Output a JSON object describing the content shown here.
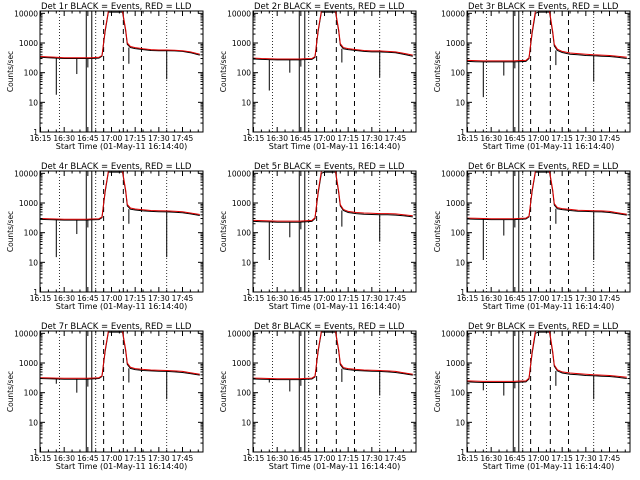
{
  "figure": {
    "xlabel": "Start Time (01-May-11 16:14:40)",
    "ylabel": "Counts/sec"
  },
  "chart_data": {
    "type": "line",
    "x_tick_labels": [
      "16:15",
      "16:30",
      "16:45",
      "17:00",
      "17:15",
      "17:30",
      "17:45"
    ],
    "x_tick_minutes": [
      15,
      30,
      45,
      60,
      75,
      90,
      105
    ],
    "xlim_minutes": [
      14.67,
      118
    ],
    "y_scale": "log",
    "ylim": [
      1,
      12000
    ],
    "y_tick_labels": [
      "1",
      "10",
      "100",
      "1000",
      "10000"
    ],
    "y_tick_values": [
      1,
      10,
      100,
      1000,
      10000
    ],
    "series_colors": {
      "events": "#000000",
      "lld": "#e00000"
    },
    "dotted_lines_minutes": [
      27,
      50,
      95
    ],
    "solid_lines_minutes": [
      44,
      47.5
    ],
    "dashed_lines_minutes": [
      55,
      67.5,
      79
    ],
    "panels": [
      {
        "title": "Det 1r  BLACK = Events, RED = LLD",
        "x_minutes": [
          15,
          20,
          25,
          30,
          35,
          40,
          44,
          47,
          52,
          54,
          56,
          58,
          60,
          62,
          64,
          66,
          67,
          69,
          70,
          72,
          75,
          80,
          85,
          90,
          95,
          100,
          105,
          110,
          116
        ],
        "y_events": [
          330,
          320,
          310,
          300,
          300,
          300,
          300,
          300,
          310,
          360,
          2500,
          11000,
          11000,
          11000,
          11000,
          11000,
          11000,
          2500,
          900,
          700,
          650,
          600,
          560,
          550,
          550,
          540,
          520,
          470,
          390
        ],
        "y_lld": [
          350,
          340,
          330,
          320,
          320,
          320,
          320,
          320,
          330,
          380,
          2800,
          12000,
          12000,
          12000,
          12000,
          12000,
          12000,
          2800,
          1000,
          760,
          700,
          640,
          600,
          580,
          580,
          570,
          550,
          500,
          420
        ],
        "dips": [
          [
            25,
            18
          ],
          [
            38,
            90
          ],
          [
            45,
            150
          ],
          [
            71,
            200
          ],
          [
            95,
            60
          ]
        ]
      },
      {
        "title": "Det 2r  BLACK = Events, RED = LLD",
        "x_minutes": [
          15,
          20,
          25,
          30,
          35,
          40,
          44,
          47,
          52,
          54,
          56,
          58,
          60,
          62,
          64,
          66,
          67,
          69,
          70,
          72,
          75,
          80,
          85,
          90,
          95,
          100,
          105,
          110,
          116
        ],
        "y_events": [
          290,
          280,
          275,
          270,
          270,
          270,
          270,
          275,
          280,
          330,
          2500,
          11000,
          11000,
          11000,
          11000,
          11000,
          11000,
          2500,
          850,
          640,
          600,
          560,
          520,
          500,
          500,
          490,
          470,
          420,
          360
        ],
        "y_lld": [
          310,
          300,
          295,
          290,
          290,
          290,
          290,
          295,
          300,
          350,
          2800,
          12000,
          12000,
          12000,
          12000,
          12000,
          12000,
          2800,
          950,
          700,
          650,
          600,
          560,
          540,
          540,
          520,
          500,
          450,
          390
        ],
        "dips": [
          [
            25,
            25
          ],
          [
            38,
            100
          ],
          [
            45,
            160
          ],
          [
            71,
            220
          ],
          [
            95,
            70
          ]
        ]
      },
      {
        "title": "Det 3r  BLACK = Events, RED = LLD",
        "x_minutes": [
          15,
          20,
          25,
          30,
          35,
          40,
          44,
          47,
          52,
          54,
          56,
          58,
          60,
          62,
          64,
          66,
          67,
          69,
          70,
          72,
          75,
          80,
          85,
          90,
          95,
          100,
          105,
          110,
          116
        ],
        "y_events": [
          240,
          235,
          230,
          230,
          230,
          230,
          230,
          235,
          240,
          300,
          2200,
          10000,
          11000,
          11000,
          11000,
          11000,
          11000,
          2200,
          800,
          560,
          480,
          420,
          400,
          380,
          370,
          360,
          350,
          330,
          300
        ],
        "y_lld": [
          260,
          255,
          250,
          250,
          250,
          250,
          250,
          255,
          260,
          320,
          2500,
          12000,
          12000,
          12000,
          12000,
          12000,
          12000,
          2500,
          900,
          620,
          520,
          460,
          440,
          420,
          400,
          390,
          380,
          360,
          330
        ],
        "dips": [
          [
            25,
            15
          ],
          [
            38,
            80
          ],
          [
            45,
            140
          ],
          [
            71,
            180
          ],
          [
            95,
            50
          ]
        ]
      },
      {
        "title": "Det 4r  BLACK = Events, RED = LLD",
        "x_minutes": [
          15,
          20,
          25,
          30,
          35,
          40,
          44,
          47,
          52,
          54,
          56,
          58,
          60,
          62,
          64,
          66,
          67,
          69,
          70,
          72,
          75,
          80,
          85,
          90,
          95,
          100,
          105,
          110,
          116
        ],
        "y_events": [
          280,
          275,
          270,
          265,
          265,
          265,
          265,
          270,
          275,
          320,
          2400,
          11000,
          11000,
          11000,
          11000,
          11000,
          11000,
          2400,
          800,
          620,
          580,
          540,
          520,
          510,
          500,
          490,
          470,
          430,
          380
        ],
        "y_lld": [
          300,
          295,
          290,
          285,
          285,
          285,
          285,
          290,
          295,
          340,
          2700,
          12000,
          12000,
          12000,
          12000,
          12000,
          12000,
          2700,
          900,
          680,
          630,
          590,
          560,
          550,
          540,
          530,
          510,
          460,
          410
        ],
        "dips": [
          [
            25,
            15
          ],
          [
            38,
            90
          ],
          [
            45,
            150
          ],
          [
            71,
            200
          ],
          [
            95,
            15
          ]
        ]
      },
      {
        "title": "Det 5r  BLACK = Events, RED = LLD",
        "x_minutes": [
          15,
          20,
          25,
          30,
          35,
          40,
          44,
          47,
          52,
          54,
          56,
          58,
          60,
          62,
          64,
          66,
          67,
          69,
          70,
          72,
          75,
          80,
          85,
          90,
          95,
          100,
          105,
          110,
          116
        ],
        "y_events": [
          240,
          235,
          230,
          225,
          225,
          225,
          225,
          230,
          240,
          300,
          2200,
          10000,
          11000,
          11000,
          11000,
          11000,
          11000,
          2200,
          800,
          560,
          480,
          440,
          420,
          410,
          400,
          400,
          390,
          370,
          340
        ],
        "y_lld": [
          260,
          255,
          250,
          245,
          245,
          245,
          245,
          250,
          260,
          320,
          2500,
          12000,
          12000,
          12000,
          12000,
          12000,
          12000,
          2500,
          880,
          610,
          520,
          480,
          460,
          450,
          440,
          440,
          430,
          400,
          370
        ],
        "dips": [
          [
            25,
            12
          ],
          [
            38,
            70
          ],
          [
            45,
            130
          ],
          [
            71,
            160
          ],
          [
            95,
            50
          ]
        ]
      },
      {
        "title": "Det 6r  BLACK = Events, RED = LLD",
        "x_minutes": [
          15,
          20,
          25,
          30,
          35,
          40,
          44,
          47,
          52,
          54,
          56,
          58,
          60,
          62,
          64,
          66,
          67,
          69,
          70,
          72,
          75,
          80,
          85,
          90,
          95,
          100,
          105,
          110,
          116
        ],
        "y_events": [
          290,
          285,
          280,
          275,
          275,
          275,
          275,
          280,
          290,
          340,
          2500,
          11000,
          11000,
          11000,
          11000,
          11000,
          11000,
          2500,
          850,
          640,
          600,
          560,
          530,
          520,
          510,
          500,
          480,
          440,
          390
        ],
        "y_lld": [
          310,
          305,
          300,
          295,
          295,
          295,
          295,
          300,
          310,
          360,
          2800,
          12000,
          12000,
          12000,
          12000,
          12000,
          12000,
          2800,
          950,
          700,
          650,
          610,
          570,
          560,
          550,
          540,
          520,
          470,
          420
        ],
        "dips": [
          [
            25,
            12
          ],
          [
            38,
            80
          ],
          [
            45,
            150
          ],
          [
            71,
            200
          ],
          [
            95,
            12
          ]
        ]
      },
      {
        "title": "Det 7r  BLACK = Events, RED = LLD",
        "x_minutes": [
          15,
          20,
          25,
          30,
          35,
          40,
          44,
          47,
          52,
          54,
          56,
          58,
          60,
          62,
          64,
          66,
          67,
          69,
          70,
          72,
          75,
          80,
          85,
          90,
          95,
          100,
          105,
          110,
          116
        ],
        "y_events": [
          300,
          295,
          290,
          285,
          285,
          285,
          285,
          290,
          300,
          350,
          2500,
          11000,
          11000,
          11000,
          11000,
          11000,
          11000,
          2500,
          900,
          660,
          600,
          560,
          540,
          530,
          520,
          500,
          480,
          440,
          390
        ],
        "y_lld": [
          320,
          315,
          310,
          305,
          305,
          305,
          305,
          310,
          320,
          370,
          2800,
          12000,
          12000,
          12000,
          12000,
          12000,
          12000,
          2800,
          1000,
          720,
          650,
          610,
          580,
          570,
          560,
          540,
          520,
          470,
          420
        ],
        "dips": [
          [
            25,
            200
          ],
          [
            38,
            100
          ],
          [
            45,
            160
          ],
          [
            71,
            220
          ],
          [
            95,
            60
          ]
        ]
      },
      {
        "title": "Det 8r  BLACK = Events, RED = LLD",
        "x_minutes": [
          15,
          20,
          25,
          30,
          35,
          40,
          44,
          47,
          52,
          54,
          56,
          58,
          60,
          62,
          64,
          66,
          67,
          69,
          70,
          72,
          75,
          80,
          85,
          90,
          95,
          100,
          105,
          110,
          116
        ],
        "y_events": [
          290,
          285,
          280,
          275,
          275,
          275,
          275,
          280,
          290,
          340,
          2500,
          11000,
          11000,
          11000,
          11000,
          11000,
          11000,
          2500,
          880,
          640,
          600,
          560,
          540,
          530,
          520,
          500,
          480,
          440,
          390
        ],
        "y_lld": [
          310,
          305,
          300,
          295,
          295,
          295,
          295,
          300,
          310,
          360,
          2800,
          12000,
          12000,
          12000,
          12000,
          12000,
          12000,
          2800,
          980,
          700,
          650,
          610,
          580,
          570,
          560,
          540,
          520,
          470,
          420
        ],
        "dips": [
          [
            25,
            220
          ],
          [
            38,
            110
          ],
          [
            45,
            170
          ],
          [
            71,
            230
          ],
          [
            95,
            80
          ]
        ]
      },
      {
        "title": "Det 9r  BLACK = Events, RED = LLD",
        "x_minutes": [
          15,
          20,
          25,
          30,
          35,
          40,
          44,
          47,
          52,
          54,
          56,
          58,
          60,
          62,
          64,
          66,
          67,
          69,
          70,
          72,
          75,
          80,
          85,
          90,
          95,
          100,
          105,
          110,
          116
        ],
        "y_events": [
          230,
          225,
          220,
          220,
          220,
          220,
          220,
          225,
          230,
          290,
          2200,
          10000,
          11000,
          11000,
          11000,
          11000,
          11000,
          2200,
          780,
          540,
          460,
          420,
          400,
          380,
          370,
          360,
          350,
          330,
          300
        ],
        "y_lld": [
          250,
          245,
          240,
          240,
          240,
          240,
          240,
          245,
          250,
          310,
          2500,
          12000,
          12000,
          12000,
          12000,
          12000,
          12000,
          2500,
          860,
          590,
          500,
          460,
          440,
          420,
          400,
          390,
          380,
          360,
          330
        ],
        "dips": [
          [
            25,
            120
          ],
          [
            38,
            80
          ],
          [
            45,
            140
          ],
          [
            71,
            170
          ],
          [
            95,
            60
          ]
        ]
      }
    ]
  }
}
